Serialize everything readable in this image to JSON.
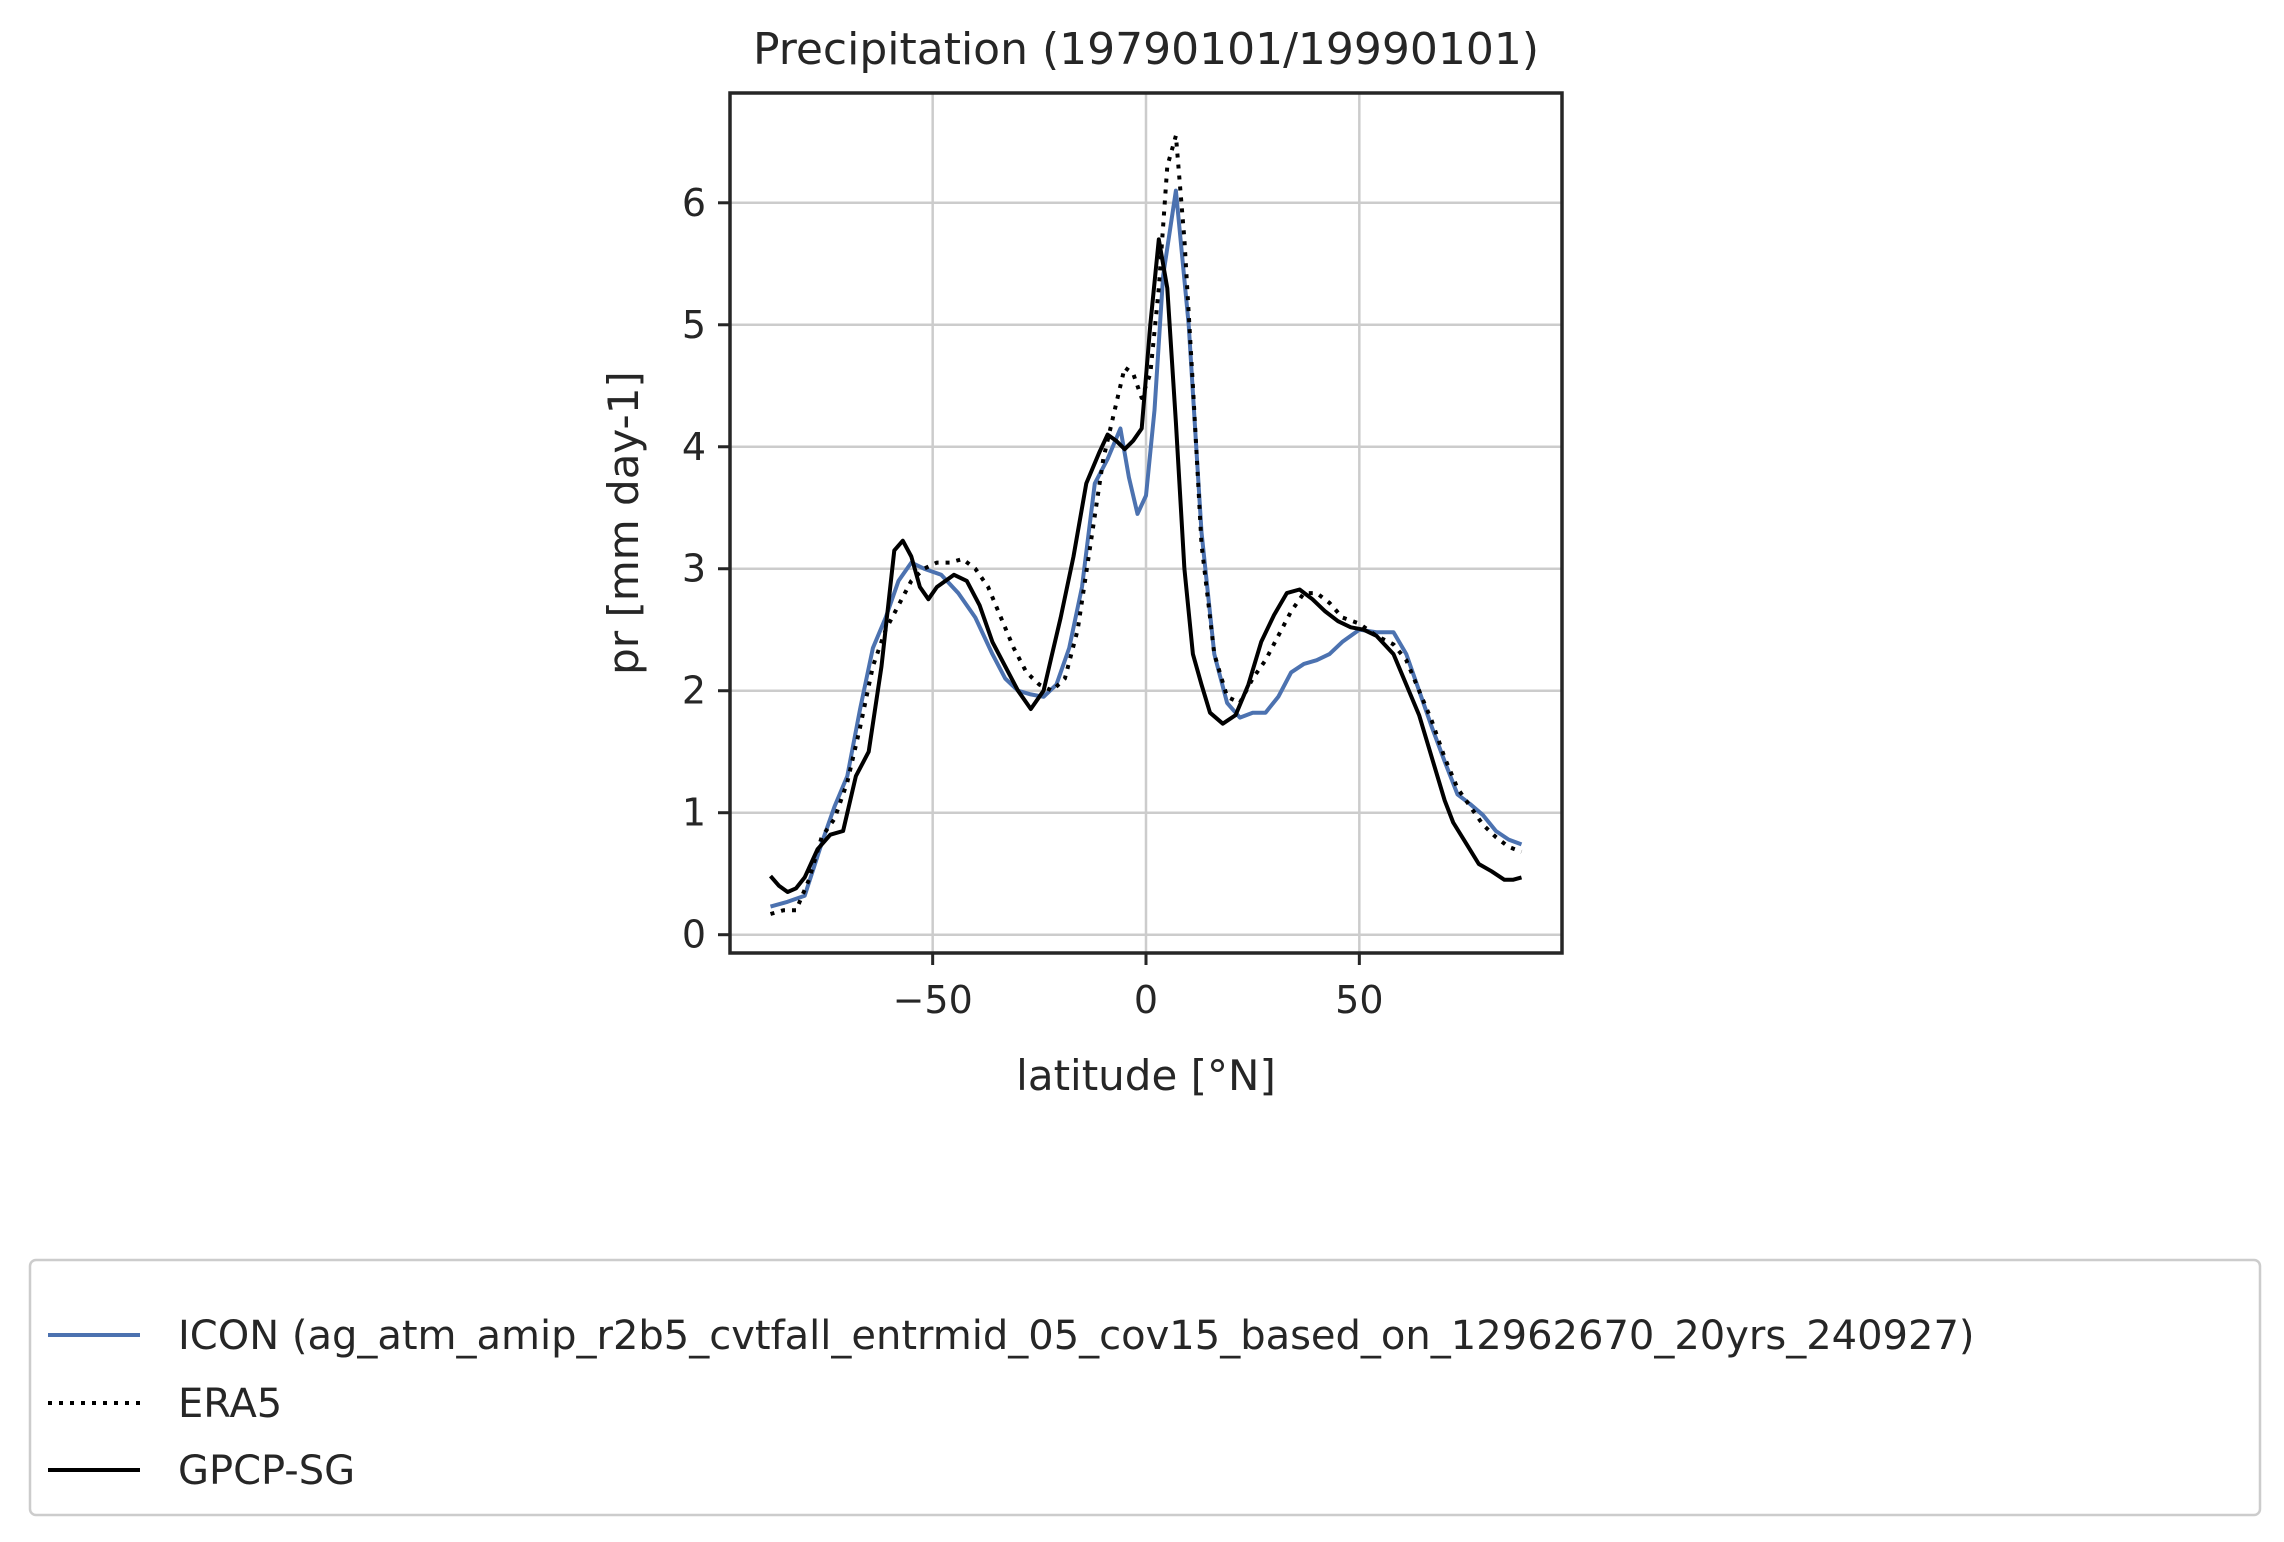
{
  "chart_data": {
    "type": "line",
    "title": "Precipitation (19790101/19990101)",
    "xlabel": "latitude [°N]",
    "ylabel": "pr [mm day-1]",
    "xlim": [
      -97.5,
      97.5
    ],
    "ylim": [
      -0.15,
      6.9
    ],
    "xticks": [
      -50,
      0,
      50
    ],
    "xtick_labels": [
      "−50",
      "0",
      "50"
    ],
    "yticks": [
      0,
      1,
      2,
      3,
      4,
      5,
      6
    ],
    "ytick_labels": [
      "0",
      "1",
      "2",
      "3",
      "4",
      "5",
      "6"
    ],
    "grid": true,
    "legend": "below",
    "series": [
      {
        "name": "ICON (ag_atm_amip_r2b5_cvtfall_entrmid_05_cov15_based_on_12962670_20yrs_240927)",
        "color": "#4c72b0",
        "style": "solid",
        "x": [
          -88,
          -84,
          -80,
          -76,
          -73,
          -70,
          -67,
          -64,
          -61,
          -58,
          -55,
          -52,
          -48,
          -44,
          -40,
          -36,
          -33,
          -30,
          -27,
          -24,
          -21,
          -18,
          -15,
          -12,
          -9,
          -6,
          -4,
          -2,
          0,
          2,
          4,
          7,
          10,
          13,
          16,
          19,
          22,
          25,
          28,
          31,
          34,
          37,
          40,
          43,
          46,
          50,
          54,
          58,
          61,
          64,
          67,
          70,
          73,
          76,
          79,
          82,
          85,
          88
        ],
        "y": [
          0.23,
          0.27,
          0.32,
          0.75,
          1.05,
          1.3,
          1.85,
          2.35,
          2.6,
          2.9,
          3.05,
          3.0,
          2.95,
          2.8,
          2.6,
          2.3,
          2.1,
          2.0,
          1.97,
          1.95,
          2.05,
          2.35,
          2.85,
          3.7,
          3.9,
          4.15,
          3.75,
          3.45,
          3.6,
          4.3,
          5.4,
          6.1,
          5.0,
          3.3,
          2.3,
          1.9,
          1.78,
          1.82,
          1.82,
          1.95,
          2.15,
          2.22,
          2.25,
          2.3,
          2.4,
          2.5,
          2.48,
          2.48,
          2.3,
          2.0,
          1.7,
          1.42,
          1.15,
          1.07,
          0.98,
          0.85,
          0.78,
          0.74
        ]
      },
      {
        "name": "ERA5",
        "color": "#000000",
        "style": "dotted",
        "x": [
          -88,
          -85,
          -82,
          -79,
          -76,
          -73,
          -70,
          -67,
          -64,
          -61,
          -58,
          -55,
          -52,
          -49,
          -46,
          -43,
          -40,
          -37,
          -34,
          -31,
          -28,
          -25,
          -22,
          -19,
          -16,
          -13,
          -10,
          -7,
          -5,
          -3,
          -1,
          1,
          3,
          5,
          7,
          9,
          11,
          13,
          16,
          19,
          22,
          25,
          28,
          31,
          34,
          37,
          40,
          43,
          46,
          50,
          54,
          58,
          61,
          64,
          67,
          70,
          73,
          76,
          79,
          82,
          85,
          88
        ],
        "y": [
          0.17,
          0.2,
          0.2,
          0.45,
          0.8,
          0.95,
          1.25,
          1.7,
          2.2,
          2.5,
          2.7,
          2.9,
          3.0,
          3.05,
          3.05,
          3.08,
          3.0,
          2.85,
          2.6,
          2.35,
          2.15,
          2.05,
          2.0,
          2.1,
          2.5,
          3.2,
          3.9,
          4.35,
          4.65,
          4.6,
          4.4,
          4.6,
          5.3,
          6.3,
          6.55,
          5.7,
          4.5,
          3.2,
          2.3,
          1.95,
          1.9,
          2.1,
          2.25,
          2.45,
          2.65,
          2.8,
          2.8,
          2.72,
          2.6,
          2.55,
          2.45,
          2.38,
          2.25,
          2.0,
          1.75,
          1.45,
          1.2,
          1.05,
          0.9,
          0.8,
          0.72,
          0.68
        ]
      },
      {
        "name": "GPCP-SG",
        "color": "#000000",
        "style": "solid",
        "x": [
          -88,
          -86,
          -84,
          -82,
          -80,
          -77,
          -74,
          -71,
          -68,
          -65,
          -62,
          -59,
          -57,
          -55,
          -53,
          -51,
          -49,
          -47,
          -45,
          -42,
          -39,
          -36,
          -33,
          -30,
          -27,
          -24,
          -22,
          -20,
          -17,
          -14,
          -11,
          -9,
          -7,
          -5,
          -3,
          -1,
          1,
          3,
          5,
          7,
          9,
          11,
          13,
          15,
          18,
          21,
          24,
          27,
          30,
          33,
          36,
          39,
          42,
          45,
          48,
          51,
          54,
          58,
          61,
          64,
          67,
          70,
          72,
          75,
          78,
          81,
          84,
          86,
          88
        ],
        "y": [
          0.48,
          0.4,
          0.35,
          0.38,
          0.47,
          0.7,
          0.82,
          0.85,
          1.3,
          1.5,
          2.2,
          3.15,
          3.23,
          3.1,
          2.85,
          2.75,
          2.85,
          2.9,
          2.95,
          2.9,
          2.7,
          2.4,
          2.2,
          2.0,
          1.85,
          2.0,
          2.3,
          2.6,
          3.1,
          3.7,
          3.95,
          4.1,
          4.05,
          3.98,
          4.05,
          4.15,
          5.0,
          5.7,
          5.3,
          4.2,
          3.0,
          2.3,
          2.05,
          1.82,
          1.73,
          1.8,
          2.05,
          2.4,
          2.62,
          2.8,
          2.83,
          2.75,
          2.65,
          2.57,
          2.52,
          2.5,
          2.45,
          2.3,
          2.05,
          1.8,
          1.45,
          1.1,
          0.92,
          0.75,
          0.58,
          0.52,
          0.45,
          0.45,
          0.47
        ]
      }
    ]
  }
}
